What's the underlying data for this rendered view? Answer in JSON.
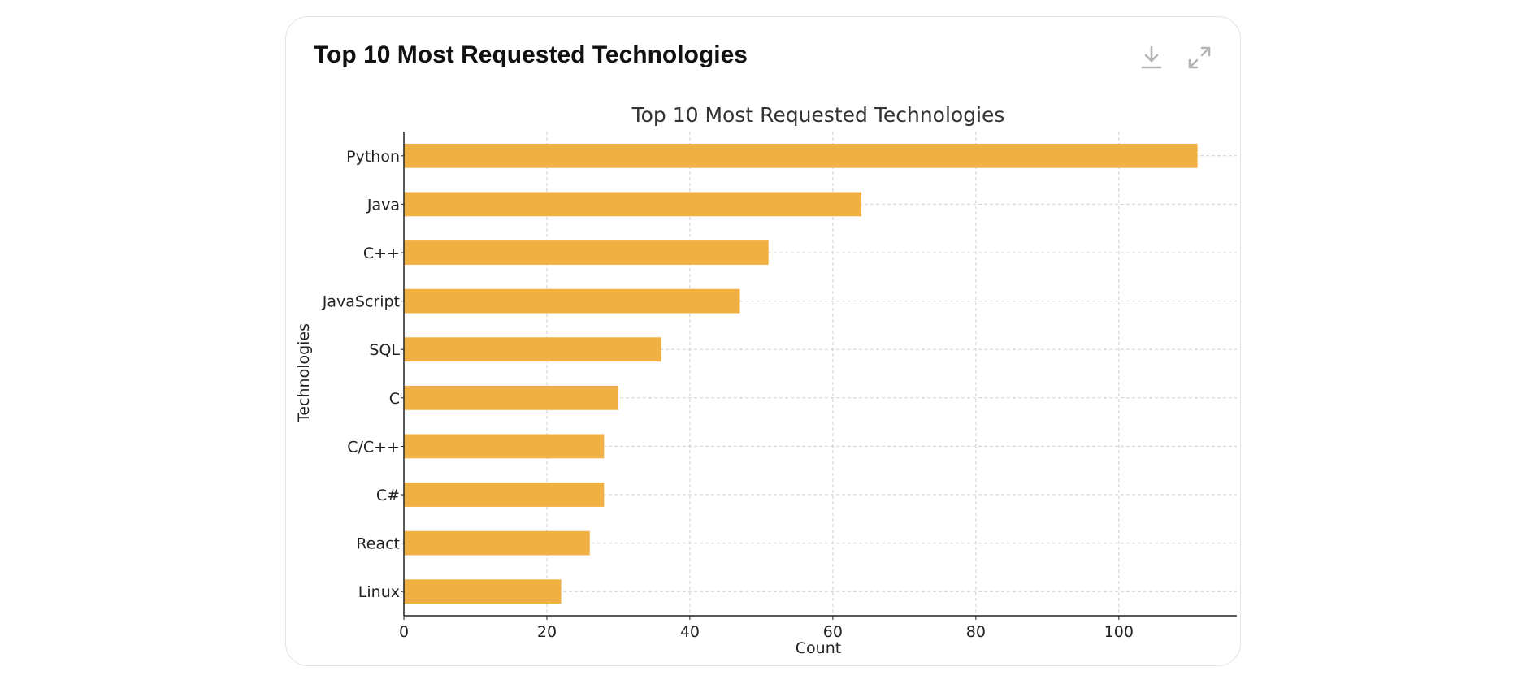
{
  "card": {
    "title": "Top 10 Most Requested Technologies",
    "download_icon": "download-icon",
    "expand_icon": "expand-icon"
  },
  "colors": {
    "bar": "#f0b142",
    "grid": "#cfcfcf",
    "axis": "#222222",
    "text": "#222222",
    "title": "#333333"
  },
  "chart_data": {
    "type": "bar",
    "orientation": "horizontal",
    "title": "Top 10 Most Requested Technologies",
    "xlabel": "Count",
    "ylabel": "Technologies",
    "categories": [
      "Python",
      "Java",
      "C++",
      "JavaScript",
      "SQL",
      "C",
      "C/C++",
      "C#",
      "React",
      "Linux"
    ],
    "values": [
      111,
      64,
      51,
      47,
      36,
      30,
      28,
      28,
      26,
      22
    ],
    "xlim": [
      0,
      116.5
    ],
    "xticks": [
      0,
      20,
      40,
      60,
      80,
      100
    ],
    "grid": true
  }
}
